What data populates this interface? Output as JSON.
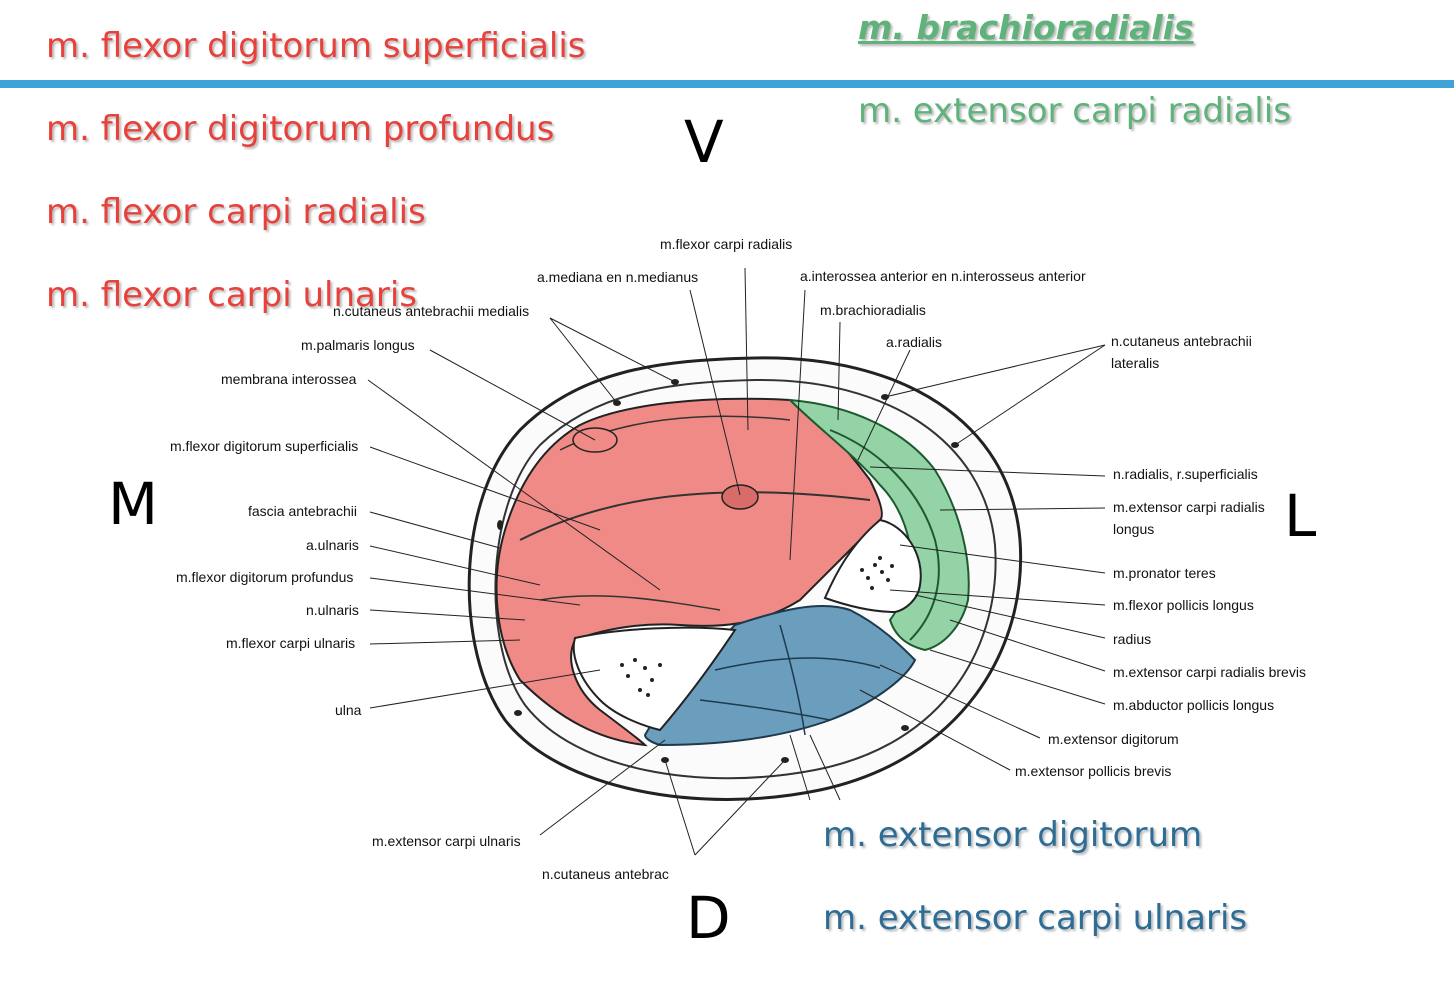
{
  "flexor_group": {
    "color": "#e8413b",
    "items": [
      "m. flexor digitorum superficialis",
      "m. flexor digitorum profundus",
      "m. flexor carpi radialis",
      "m. flexor carpi ulnaris"
    ]
  },
  "lateral_group": {
    "color": "#5fb27a",
    "title": "m. brachioradialis",
    "items": [
      "m. extensor carpi radialis"
    ]
  },
  "extensor_group": {
    "color": "#2d6d95",
    "items": [
      "m. extensor digitorum",
      "m. extensor carpi ulnaris"
    ]
  },
  "orientation": {
    "ventral": "V",
    "dorsal": "D",
    "medial": "M",
    "lateral": "L"
  },
  "labels": {
    "flexor_carpi_radialis": "m.flexor carpi radialis",
    "a_mediana": "a.mediana en n.medianus",
    "a_interossea": "a.interossea anterior en n.interosseus anterior",
    "brachioradialis": "m.brachioradialis",
    "cutaneus_medialis": "n.cutaneus antebrachii medialis",
    "a_radialis": "a.radialis",
    "cutaneus_lateralis_1": "n.cutaneus antebrachii",
    "cutaneus_lateralis_2": "lateralis",
    "palmaris_longus": "m.palmaris longus",
    "membrana_interossea": "membrana interossea",
    "fd_superficialis": "m.flexor digitorum superficialis",
    "fascia": "fascia antebrachii",
    "a_ulnaris": "a.ulnaris",
    "fd_profundus": "m.flexor digitorum profundus",
    "n_ulnaris": "n.ulnaris",
    "fc_ulnaris": "m.flexor carpi ulnaris",
    "ulna": "ulna",
    "n_radialis": "n.radialis, r.superficialis",
    "ecr_longus_1": "m.extensor carpi radialis",
    "ecr_longus_2": "longus",
    "pronator_teres": "m.pronator teres",
    "fp_longus": "m.flexor pollicis longus",
    "radius": "radius",
    "ecr_brevis": "m.extensor carpi radialis brevis",
    "ap_longus": "m.abductor pollicis longus",
    "ext_digitorum": "m.extensor digitorum",
    "ep_brevis": "m.extensor pollicis brevis",
    "ec_ulnaris": "m.extensor carpi ulnaris",
    "cutaneus_posterior": "n.cutaneus antebrac"
  }
}
